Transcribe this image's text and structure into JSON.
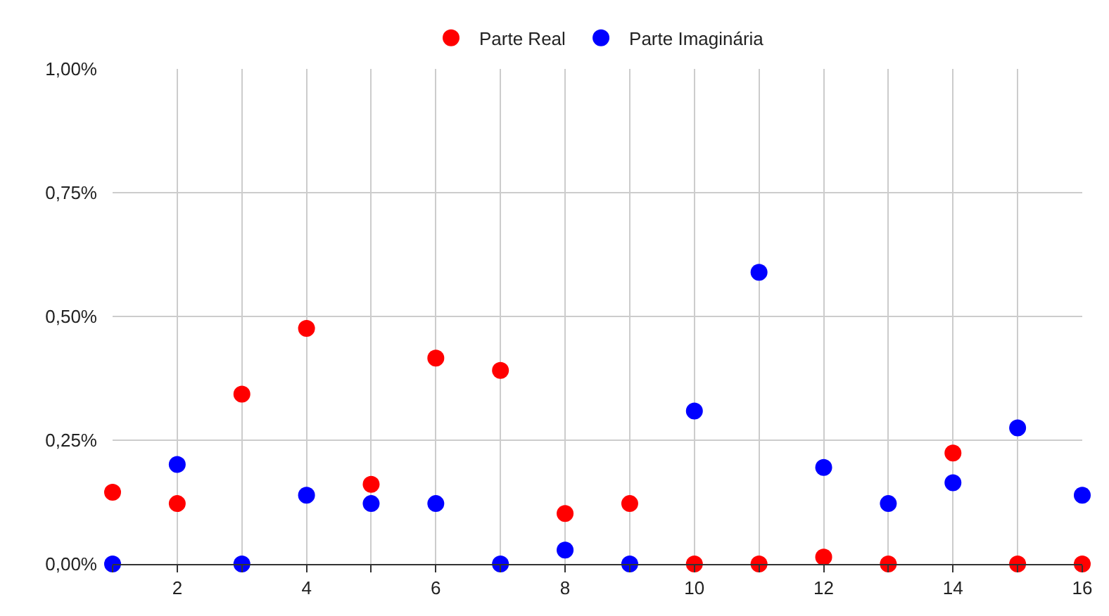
{
  "chart_data": {
    "type": "scatter",
    "x": [
      1,
      2,
      3,
      4,
      5,
      6,
      7,
      8,
      9,
      10,
      11,
      12,
      13,
      14,
      15,
      16
    ],
    "series": [
      {
        "name": "Parte Real",
        "color": "#ff0000",
        "values": [
          0.145,
          0.122,
          0.343,
          0.476,
          0.161,
          0.416,
          0.391,
          0.102,
          0.122,
          0,
          0,
          0.014,
          0,
          0.224,
          0,
          0
        ]
      },
      {
        "name": "Parte Imaginária",
        "color": "#0000ff",
        "values": [
          0,
          0.201,
          0,
          0.139,
          0.122,
          0.122,
          0,
          0.028,
          0,
          0.309,
          0.589,
          0.195,
          0.122,
          0.164,
          0.275,
          0.139
        ]
      }
    ],
    "xlim": [
      1,
      16
    ],
    "xticks": [
      {
        "value": 1,
        "label": null
      },
      2,
      {
        "value": 3,
        "label": null
      },
      4,
      {
        "value": 5,
        "label": null
      },
      6,
      {
        "value": 7,
        "label": null
      },
      8,
      {
        "value": 9,
        "label": null
      },
      10,
      {
        "value": 11,
        "label": null
      },
      12,
      {
        "value": 13,
        "label": null
      },
      14,
      {
        "value": 15,
        "label": null
      },
      16
    ],
    "ylim": [
      0,
      1
    ],
    "yticks": [
      {
        "value": 0,
        "label": "0,00%"
      },
      {
        "value": 0.25,
        "label": "0,25%"
      },
      {
        "value": 0.5,
        "label": "0,50%"
      },
      {
        "value": 0.75,
        "label": "0,75%"
      },
      {
        "value": 1,
        "label": "1,00%"
      }
    ],
    "grid": true,
    "legend": "top",
    "marker": "circle"
  }
}
